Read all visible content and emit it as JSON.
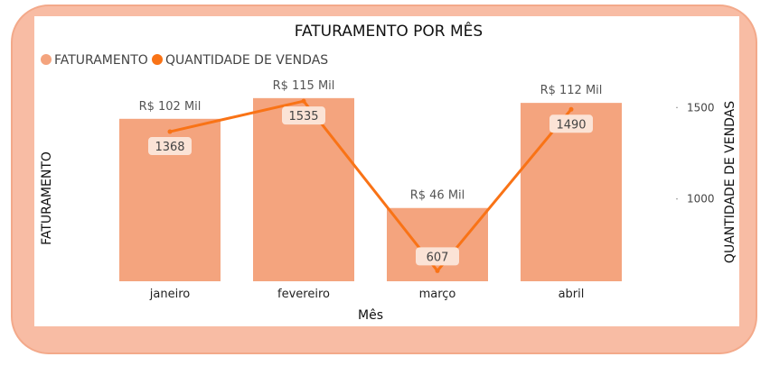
{
  "chart_data": {
    "type": "bar",
    "title": "FATURAMENTO POR MÊS",
    "xlabel": "Mês",
    "ylabel": "FATURAMENTO",
    "y2label": "QUANTIDADE DE VENDAS",
    "categories": [
      "janeiro",
      "fevereiro",
      "março",
      "abril"
    ],
    "legend_position": "top-left",
    "series": [
      {
        "name": "FATURAMENTO",
        "type": "bar",
        "axis": "left",
        "color": "#f4a47e",
        "values": [
          102,
          115,
          46,
          112
        ],
        "labels": [
          "R$ 102 Mil",
          "R$ 115 Mil",
          "R$ 46 Mil",
          "R$ 112 Mil"
        ]
      },
      {
        "name": "QUANTIDADE DE VENDAS",
        "type": "line",
        "axis": "right",
        "color": "#f97316",
        "values": [
          1368,
          1535,
          607,
          1490
        ],
        "labels": [
          "1368",
          "1535",
          "607",
          "1490"
        ]
      }
    ],
    "ylim": [
      0,
      120
    ],
    "y2lim": [
      550,
      1595
    ],
    "y2ticks": [
      1000,
      1500
    ],
    "y2ticklabels": [
      "1000",
      "1500"
    ]
  }
}
